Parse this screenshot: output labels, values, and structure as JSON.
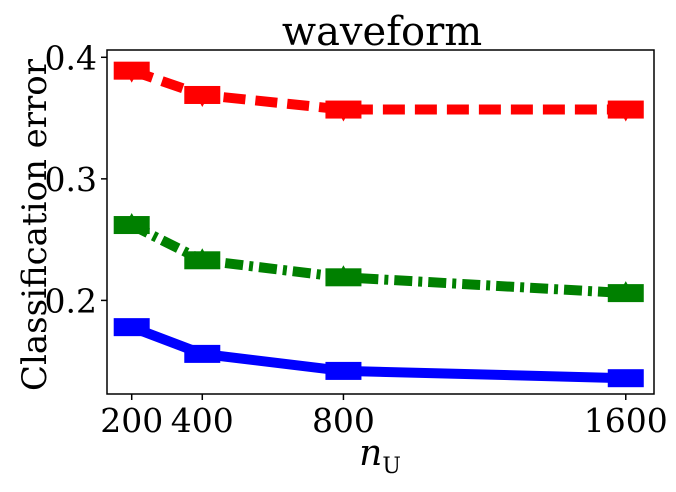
{
  "chart_data": {
    "type": "line",
    "title": "waveform",
    "xlabel": "n",
    "xlabel_subscript": "U",
    "ylabel": "Classification error",
    "x": [
      200,
      400,
      800,
      1600
    ],
    "x_ticks": [
      "200",
      "400",
      "800",
      "1600"
    ],
    "y_ticks": [
      "0.2",
      "0.3",
      "0.4"
    ],
    "y_tick_values": [
      0.2,
      0.3,
      0.4
    ],
    "xlim": [
      130,
      1680
    ],
    "ylim": [
      0.123,
      0.406
    ],
    "grid": false,
    "series": [
      {
        "values": [
          0.389,
          0.369,
          0.357,
          0.357
        ],
        "color": "#ff0000",
        "dash": "22,10",
        "marker": "triangle-down"
      },
      {
        "values": [
          0.262,
          0.233,
          0.219,
          0.206
        ],
        "color": "#008000",
        "dash": "18,6,4,6",
        "marker": "triangle-up"
      },
      {
        "values": [
          0.178,
          0.156,
          0.142,
          0.136
        ],
        "color": "#0000ff",
        "dash": "",
        "marker": "circle"
      }
    ]
  }
}
